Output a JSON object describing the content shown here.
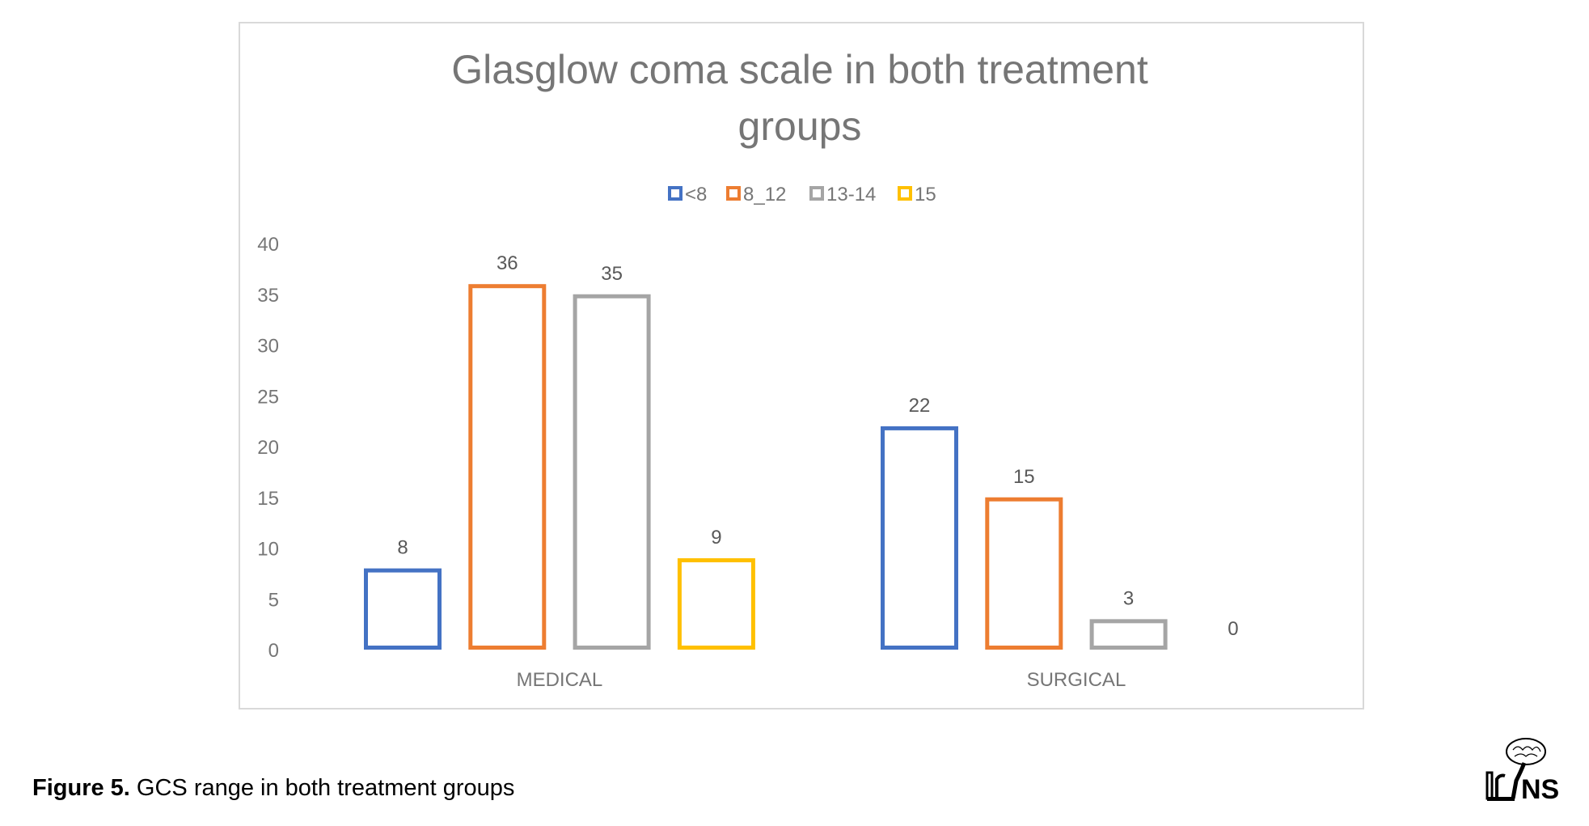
{
  "chart_data": {
    "type": "bar",
    "title": "Glasglow coma scale in both treatment groups",
    "title_lines": [
      "Glasglow coma scale in both treatment",
      "groups"
    ],
    "categories": [
      "MEDICAL",
      "SURGICAL"
    ],
    "series": [
      {
        "name": "<8",
        "color": "#4472C4",
        "values": [
          8,
          22
        ]
      },
      {
        "name": "8_12",
        "color": "#ED7D31",
        "values": [
          36,
          15
        ]
      },
      {
        "name": "13-14",
        "color": "#A5A5A5",
        "values": [
          35,
          3
        ]
      },
      {
        "name": "15",
        "color": "#FFC000",
        "values": [
          9,
          0
        ]
      }
    ],
    "ylim": [
      0,
      40
    ],
    "yticks": [
      0,
      5,
      10,
      15,
      20,
      25,
      30,
      35,
      40
    ],
    "xlabel": "",
    "ylabel": "",
    "legend": "top-center",
    "grid": false,
    "bar_style": "outline"
  },
  "caption": {
    "label": "Figure 5.",
    "text": " GCS range in both treatment groups"
  },
  "logo": {
    "text": "IrJNS"
  }
}
